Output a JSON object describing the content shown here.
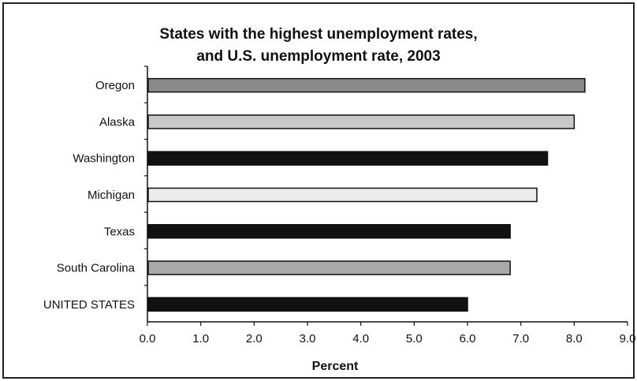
{
  "chart_data": {
    "type": "bar",
    "orientation": "horizontal",
    "title_line1": "States with the highest unemployment rates,",
    "title_line2": "and U.S. unemployment rate, 2003",
    "xlabel": "Percent",
    "ylabel": "",
    "xlim": [
      0,
      9
    ],
    "xticks": [
      "0.0",
      "1.0",
      "2.0",
      "3.0",
      "4.0",
      "5.0",
      "6.0",
      "7.0",
      "8.0",
      "9.0"
    ],
    "categories": [
      "Oregon",
      "Alaska",
      "Washington",
      "Michigan",
      "Texas",
      "South Carolina",
      "UNITED STATES"
    ],
    "values": [
      8.2,
      8.0,
      7.5,
      7.3,
      6.8,
      6.8,
      6.0
    ],
    "colors": [
      "#8a8a8a",
      "#c8c8c8",
      "#111111",
      "#ececec",
      "#111111",
      "#a9a9a9",
      "#111111"
    ],
    "grid": false,
    "legend": "none"
  }
}
